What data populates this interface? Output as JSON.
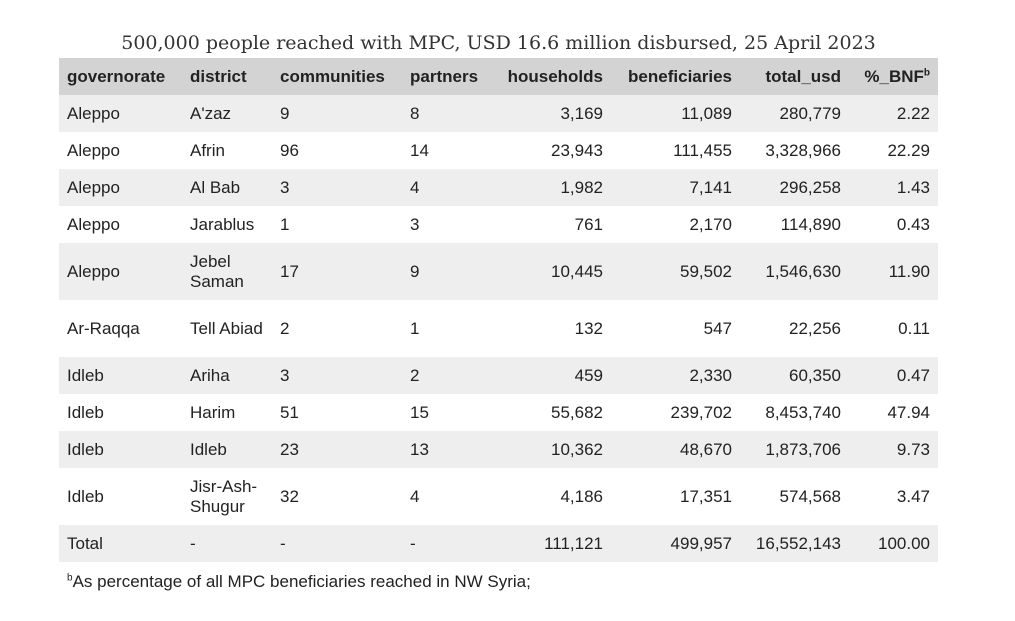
{
  "title": "500,000 people reached with MPC, USD 16.6 million disbursed, 25 April 2023",
  "chart_data": {
    "type": "table",
    "columns": [
      "governorate",
      "district",
      "communities",
      "partners",
      "households",
      "beneficiaries",
      "total_usd",
      "%_BNF"
    ],
    "header_footnote_marker": "b",
    "rows": [
      [
        "Aleppo",
        "A'zaz",
        "9",
        "8",
        "3,169",
        "11,089",
        "280,779",
        "2.22"
      ],
      [
        "Aleppo",
        "Afrin",
        "96",
        "14",
        "23,943",
        "111,455",
        "3,328,966",
        "22.29"
      ],
      [
        "Aleppo",
        "Al Bab",
        "3",
        "4",
        "1,982",
        "7,141",
        "296,258",
        "1.43"
      ],
      [
        "Aleppo",
        "Jarablus",
        "1",
        "3",
        "761",
        "2,170",
        "114,890",
        "0.43"
      ],
      [
        "Aleppo",
        "Jebel Saman",
        "17",
        "9",
        "10,445",
        "59,502",
        "1,546,630",
        "11.90"
      ],
      [
        "Ar-Raqqa",
        "Tell Abiad",
        "2",
        "1",
        "132",
        "547",
        "22,256",
        "0.11"
      ],
      [
        "Idleb",
        "Ariha",
        "3",
        "2",
        "459",
        "2,330",
        "60,350",
        "0.47"
      ],
      [
        "Idleb",
        "Harim",
        "51",
        "15",
        "55,682",
        "239,702",
        "8,453,740",
        "47.94"
      ],
      [
        "Idleb",
        "Idleb",
        "23",
        "13",
        "10,362",
        "48,670",
        "1,873,706",
        "9.73"
      ],
      [
        "Idleb",
        "Jisr-Ash-Shugur",
        "32",
        "4",
        "4,186",
        "17,351",
        "574,568",
        "3.47"
      ],
      [
        "Total",
        "-",
        "-",
        "-",
        "111,121",
        "499,957",
        "16,552,143",
        "100.00"
      ]
    ],
    "footnote": "As percentage of all MPC beneficiaries reached in NW Syria;"
  }
}
